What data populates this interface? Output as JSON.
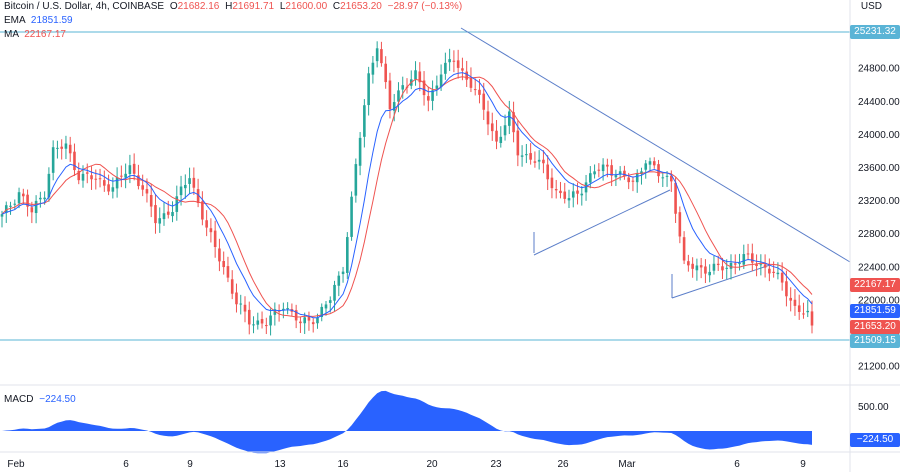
{
  "header": {
    "line1": {
      "symbol": "Bitcoin / U.S. Dollar, 4h, COINBASE",
      "o_label": "O",
      "o": "21682.16",
      "h_label": "H",
      "h": "21691.71",
      "l_label": "L",
      "l": "21600.00",
      "c_label": "C",
      "c": "21653.20",
      "chg": "−28.97 (−0.13%)"
    },
    "ema_label": "EMA",
    "ema": "21851.59",
    "ma_label": "MA",
    "ma": "22167.17",
    "macd_label": "MACD",
    "macd": "−224.50",
    "currency": "USD"
  },
  "tags": {
    "level_top": "25231.32",
    "ma": "22167.17",
    "ema": "21851.59",
    "price": "21653.20",
    "level_bottom": "21509.15",
    "macd": "−224.50"
  },
  "colors": {
    "up": "#26a69a",
    "down": "#ef5350",
    "ema": "#2962ff",
    "ma": "#ef5350",
    "hline": "#5ab4d6",
    "trend": "#5b7ec9",
    "macd": "#2962ff"
  },
  "chart_data": {
    "type": "candlestick",
    "title": "Bitcoin / U.S. Dollar, 4h, COINBASE",
    "y_ticks": [
      21200,
      21600,
      22000,
      22400,
      22800,
      23200,
      23600,
      24000,
      24400,
      24800
    ],
    "y_tick_labels": [
      "21200.00",
      "21600.00",
      "22000.00",
      "22400.00",
      "22800.00",
      "23200.00",
      "23600.00",
      "24000.00",
      "24400.00",
      "24800.00"
    ],
    "ylim": [
      21000,
      25350
    ],
    "x_tick_labels": [
      "Feb",
      "6",
      "9",
      "13",
      "16",
      "20",
      "23",
      "26",
      "Mar",
      "6",
      "9"
    ],
    "horizontal_levels": [
      25231.32,
      21509.15
    ],
    "macd_ticks": [
      "500.00"
    ],
    "price_anchors": [
      [
        0,
        23000
      ],
      [
        4,
        23300
      ],
      [
        7,
        23050
      ],
      [
        10,
        23300
      ],
      [
        12,
        23800
      ],
      [
        15,
        23850
      ],
      [
        18,
        23500
      ],
      [
        22,
        23450
      ],
      [
        26,
        23350
      ],
      [
        30,
        23600
      ],
      [
        33,
        23350
      ],
      [
        36,
        22950
      ],
      [
        40,
        23100
      ],
      [
        44,
        23500
      ],
      [
        48,
        22850
      ],
      [
        52,
        22400
      ],
      [
        55,
        21950
      ],
      [
        58,
        21750
      ],
      [
        62,
        21700
      ],
      [
        66,
        21950
      ],
      [
        70,
        21700
      ],
      [
        74,
        21800
      ],
      [
        77,
        22000
      ],
      [
        80,
        22400
      ],
      [
        83,
        23600
      ],
      [
        86,
        24700
      ],
      [
        88,
        25100
      ],
      [
        91,
        24300
      ],
      [
        94,
        24600
      ],
      [
        97,
        24700
      ],
      [
        100,
        24400
      ],
      [
        103,
        24750
      ],
      [
        106,
        24900
      ],
      [
        108,
        24750
      ],
      [
        110,
        24600
      ],
      [
        113,
        24300
      ],
      [
        116,
        23900
      ],
      [
        119,
        24200
      ],
      [
        121,
        23800
      ],
      [
        124,
        23700
      ],
      [
        127,
        23600
      ],
      [
        130,
        23300
      ],
      [
        133,
        23200
      ],
      [
        136,
        23350
      ],
      [
        139,
        23550
      ],
      [
        142,
        23600
      ],
      [
        145,
        23500
      ],
      [
        148,
        23400
      ],
      [
        151,
        23700
      ],
      [
        154,
        23500
      ],
      [
        157,
        23450
      ],
      [
        160,
        22400
      ],
      [
        163,
        22400
      ],
      [
        166,
        22350
      ],
      [
        170,
        22400
      ],
      [
        174,
        22500
      ],
      [
        177,
        22450
      ],
      [
        180,
        22350
      ],
      [
        183,
        22200
      ],
      [
        186,
        21900
      ],
      [
        189,
        21800
      ],
      [
        190,
        21653
      ]
    ]
  }
}
